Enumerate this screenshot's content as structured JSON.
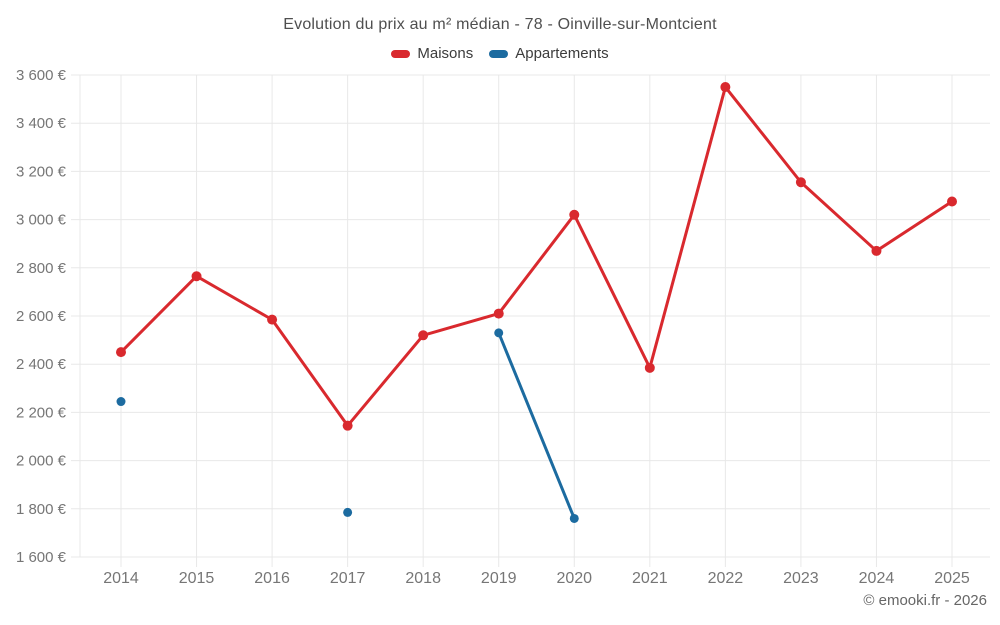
{
  "header": {
    "title": "Evolution du prix au m² médian - 78 - Oinville-sur-Montcient"
  },
  "legend": [
    {
      "label": "Maisons",
      "color": "#d9292e"
    },
    {
      "label": "Appartements",
      "color": "#1c6ba0"
    }
  ],
  "footer": {
    "credit": "© emooki.fr - 2026"
  },
  "chart_data": {
    "type": "line",
    "title": "Evolution du prix au m² médian - 78 - Oinville-sur-Montcient",
    "x_labels": [
      "2014",
      "2015",
      "2016",
      "2017",
      "2018",
      "2019",
      "2020",
      "2021",
      "2022",
      "2023",
      "2024",
      "2025"
    ],
    "series": [
      {
        "name": "Maisons",
        "color": "#d9292e",
        "point_radius": 5,
        "line_width": 3,
        "values": [
          2450,
          2765,
          2585,
          2145,
          2520,
          2610,
          3020,
          2385,
          3550,
          3155,
          2870,
          3075
        ]
      },
      {
        "name": "Appartements",
        "color": "#1c6ba0",
        "point_radius": 4.5,
        "line_width": 3,
        "span_gaps": false,
        "values": [
          2245,
          null,
          null,
          1785,
          null,
          2530,
          1760,
          null,
          null,
          null,
          null,
          null
        ]
      }
    ],
    "ylim": [
      1600,
      3600
    ],
    "yticks": [
      1600,
      1800,
      2000,
      2200,
      2400,
      2600,
      2800,
      3000,
      3200,
      3400,
      3600
    ],
    "ytick_labels": [
      "1 600 €",
      "1 800 €",
      "2 000 €",
      "2 200 €",
      "2 400 €",
      "2 600 €",
      "2 800 €",
      "3 000 €",
      "3 200 €",
      "3 400 €",
      "3 600 €"
    ],
    "grid": true,
    "grid_color": "#e8e8e8",
    "legend_position": "top",
    "ylabel": "",
    "xlabel": ""
  }
}
